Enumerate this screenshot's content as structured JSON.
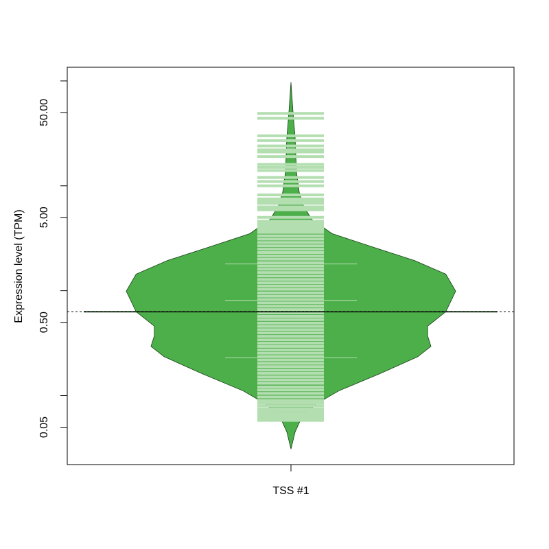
{
  "chart_data": {
    "type": "beanplot",
    "y_label": "Expression level (TPM)",
    "categories": [
      "TSS #1"
    ],
    "log_y": true,
    "ylim": [
      0.022,
      135
    ],
    "yticks": [
      0.05,
      {
        "value": 0.5,
        "label": "0.50"
      },
      {
        "value": 5,
        "label": "5.00"
      },
      {
        "value": 50,
        "label": "50.00"
      }
    ],
    "yminorticks": [
      0.1,
      1,
      10,
      100
    ],
    "color": "#4daf4a",
    "line_color": "#b3deb0",
    "border_color": "#1b3f1b",
    "density_y": [
      97,
      50,
      29,
      13.7,
      8.7,
      6.5,
      4.8,
      3.5,
      2.6,
      1.94,
      1.44,
      0.99,
      0.63,
      0.46,
      0.37,
      0.295,
      0.235,
      0.162,
      0.111,
      0.082,
      0.061,
      0.045,
      0.031
    ],
    "density_width": [
      0,
      0.0125,
      0.025,
      0.033,
      0.05,
      0.075,
      0.125,
      0.25,
      0.5,
      0.75,
      0.94,
      1,
      0.94,
      0.83,
      0.83,
      0.85,
      0.77,
      0.54,
      0.29,
      0.146,
      0.063,
      0.025,
      0
    ],
    "quantiles": [
      1.8,
      0.81,
      0.23
    ],
    "mean": 0.63,
    "overall_mean": 0.63,
    "observations": [
      49,
      44,
      30,
      27,
      24,
      22,
      21,
      19,
      16,
      15,
      14,
      12,
      11,
      10,
      8.2,
      7.5,
      7.2,
      6.8,
      6.3,
      6.1,
      5.9,
      5,
      4.6,
      4.4,
      4.2,
      4.0,
      3.8,
      3.6,
      3.34,
      3.1,
      2.88,
      2.68,
      2.49,
      2.31,
      2.15,
      2.0,
      1.85,
      1.72,
      1.6,
      1.49,
      1.38,
      1.28,
      1.19,
      1.11,
      1.03,
      0.955,
      0.887,
      0.824,
      0.766,
      0.711,
      0.661,
      0.614,
      0.57,
      0.53,
      0.492,
      0.457,
      0.425,
      0.395,
      0.367,
      0.34,
      0.316,
      0.294,
      0.273,
      0.254,
      0.236,
      0.219,
      0.203,
      0.189,
      0.175,
      0.163,
      0.151,
      0.141,
      0.131,
      0.121,
      0.113,
      0.105,
      0.097,
      0.09,
      0.085,
      0.08,
      0.075,
      0.072,
      0.068,
      0.065,
      0.062,
      0.06,
      0.058
    ]
  }
}
